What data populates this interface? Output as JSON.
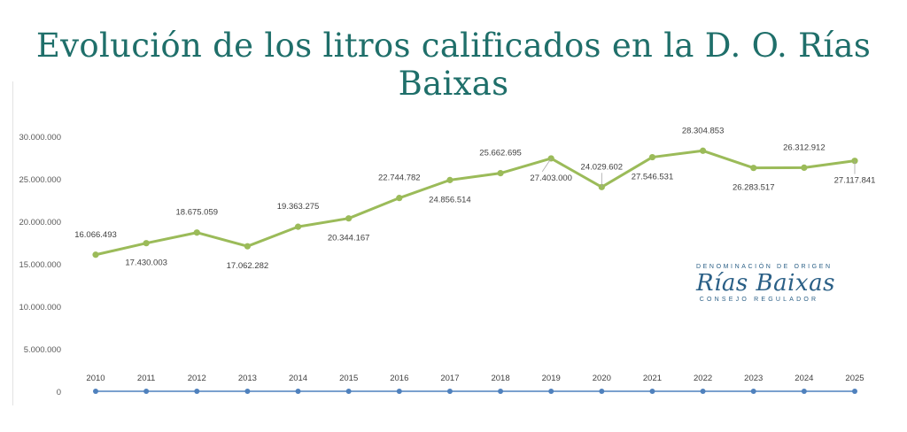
{
  "title": "Evolución de los litros calificados en la D. O. Rías Baixas",
  "logo": {
    "top_text": "DENOMINACIÓN DE ORIGEN",
    "brand": "Rías Baixas",
    "bottom_text": "CONSEJO REGULADOR"
  },
  "colors": {
    "title": "#1f6f6a",
    "series": "#9bbb59",
    "baseline": "#4f81bd",
    "logo": "#2a5f86"
  },
  "chart_data": {
    "type": "line",
    "x": [
      "2010",
      "2011",
      "2012",
      "2013",
      "2014",
      "2015",
      "2016",
      "2017",
      "2018",
      "2019",
      "2020",
      "2021",
      "2022",
      "2023",
      "2024",
      "2025"
    ],
    "series": [
      {
        "values": [
          16066493,
          17430003,
          18675059,
          17062282,
          19363275,
          20344167,
          22744782,
          24856514,
          25662695,
          27403000,
          24029602,
          27546531,
          28304853,
          26283517,
          26312912,
          27117841
        ],
        "labels": [
          "16.066.493",
          "17.430.003",
          "18.675.059",
          "17.062.282",
          "19.363.275",
          "20.344.167",
          "22.744.782",
          "24.856.514",
          "25.662.695",
          "27.403.000",
          "24.029.602",
          "27.546.531",
          "28.304.853",
          "26.283.517",
          "26.312.912",
          "27.117.841"
        ]
      },
      {
        "values": [
          0,
          0,
          0,
          0,
          0,
          0,
          0,
          0,
          0,
          0,
          0,
          0,
          0,
          0,
          0,
          0
        ]
      }
    ],
    "yticks": [
      0,
      5000000,
      10000000,
      15000000,
      20000000,
      25000000,
      30000000
    ],
    "ytick_labels": [
      "0",
      "5.000.000",
      "10.000.000",
      "15.000.000",
      "20.000.000",
      "25.000.000",
      "30.000.000"
    ],
    "ylim": [
      0,
      30000000
    ],
    "grid": false,
    "legend": "none"
  }
}
